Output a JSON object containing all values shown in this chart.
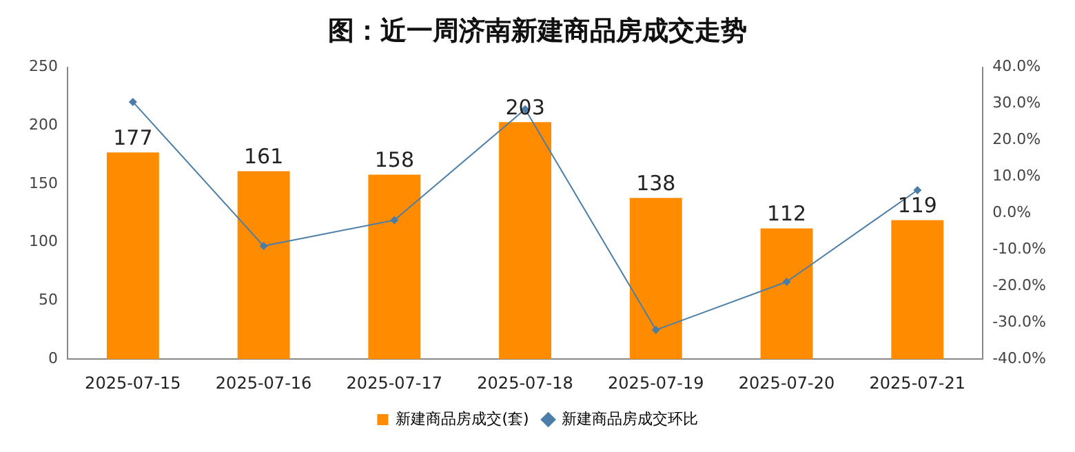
{
  "chart_data": {
    "type": "bar",
    "title": "图：近一周济南新建商品房成交走势",
    "categories": [
      "2025-07-15",
      "2025-07-16",
      "2025-07-17",
      "2025-07-18",
      "2025-07-19",
      "2025-07-20",
      "2025-07-21"
    ],
    "series": [
      {
        "name": "新建商品房成交(套)",
        "color": "#ff8c00",
        "values": [
          177,
          161,
          158,
          203,
          138,
          112,
          119
        ],
        "value_labels": [
          "177",
          "161",
          "158",
          "203",
          "138",
          "112",
          "119"
        ]
      },
      {
        "name": "新建商品房成交环比",
        "type": "line",
        "axis": "y2",
        "color": "#4a7ea8",
        "values": [
          30.5,
          -9.0,
          -1.9,
          28.5,
          -32.0,
          -18.8,
          6.3
        ]
      }
    ],
    "ylim": [
      0,
      250
    ],
    "yticks": [
      0,
      50,
      100,
      150,
      200,
      250
    ],
    "y2lim": [
      -40,
      40
    ],
    "y2ticks": [
      {
        "value": -40,
        "label": "-40.0%"
      },
      {
        "value": -30,
        "label": "-30.0%"
      },
      {
        "value": -20,
        "label": "-20.0%"
      },
      {
        "value": -10,
        "label": "-10.0%"
      },
      {
        "value": 0,
        "label": "0.0%"
      },
      {
        "value": 10,
        "label": "10.0%"
      },
      {
        "value": 20,
        "label": "20.0%"
      },
      {
        "value": 30,
        "label": "30.0%"
      },
      {
        "value": 40,
        "label": "40.0%"
      }
    ],
    "grid": false,
    "legend": "bottom",
    "marker": "diamond",
    "line_style": "solid"
  }
}
